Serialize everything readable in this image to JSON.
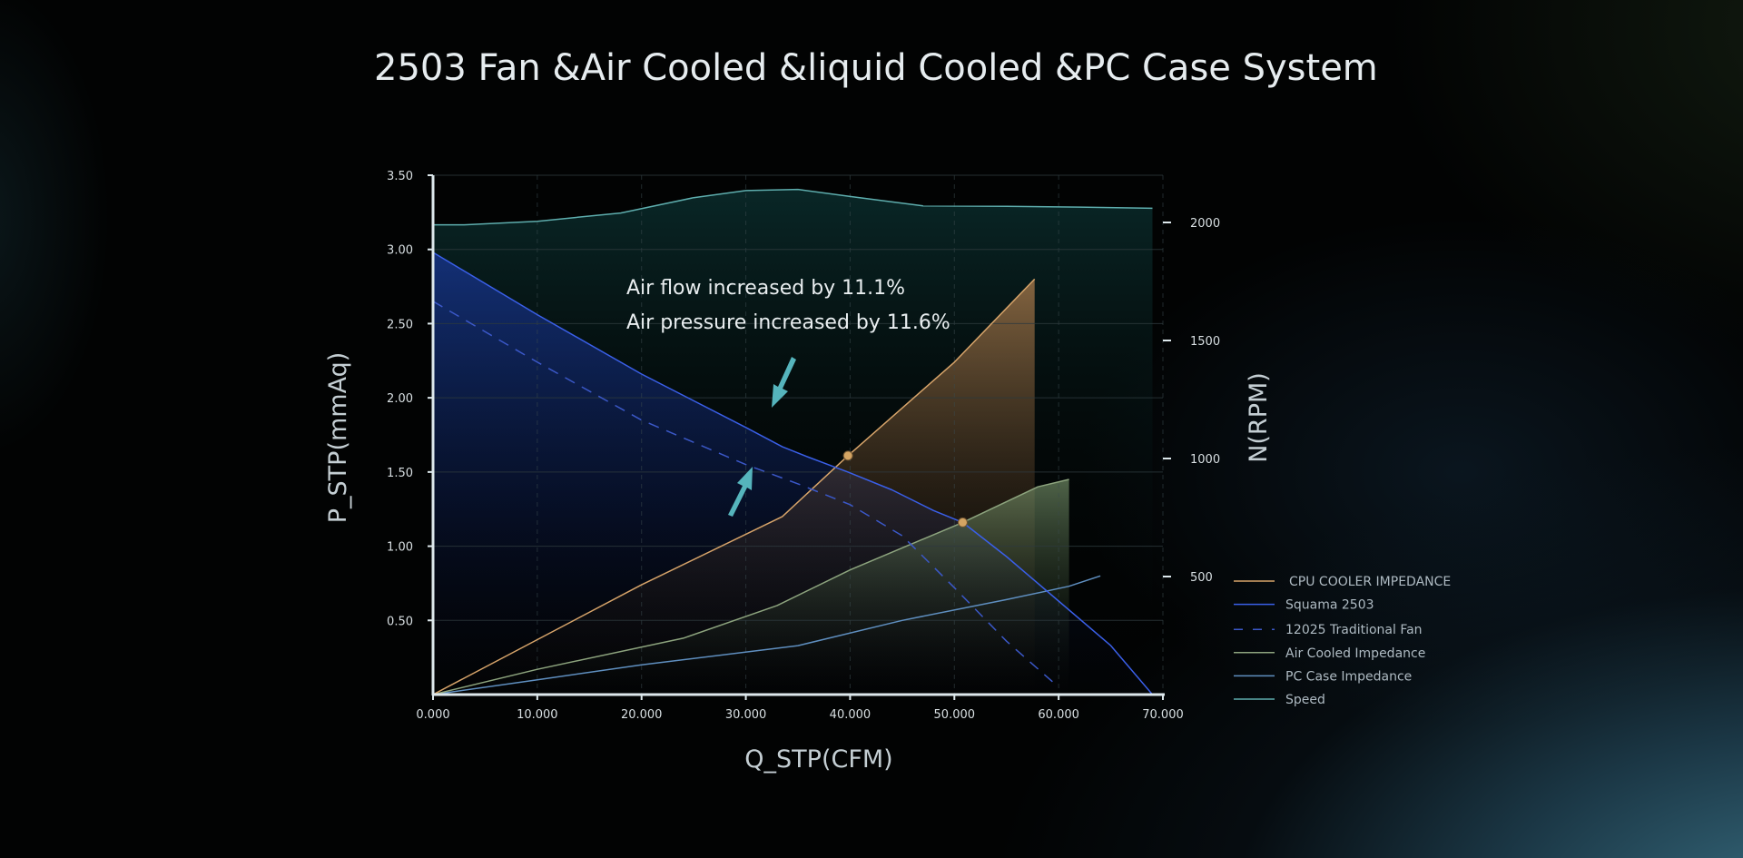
{
  "chart_data": {
    "type": "line",
    "title": "2503 Fan &Air Cooled &liquid Cooled &PC Case System",
    "xlabel": "Q_STP(CFM)",
    "ylabel": "P_STP(mmAq)",
    "y2label": "N(RPM)",
    "xlim": [
      0,
      70
    ],
    "ylim": [
      0,
      3.5
    ],
    "y2lim": [
      0,
      2200
    ],
    "x_ticks": [
      "0.000",
      "10.000",
      "20.000",
      "30.000",
      "40.000",
      "50.000",
      "60.000",
      "70.000"
    ],
    "y_ticks": [
      "0.50",
      "1.00",
      "1.50",
      "2.00",
      "2.50",
      "3.00",
      "3.50"
    ],
    "y2_ticks": [
      "500",
      "1000",
      "1500",
      "2000"
    ],
    "grid": true,
    "legend_position": "right",
    "annotations": [
      "Air flow increased by 11.1%",
      "Air pressure increased by 11.6%"
    ],
    "series": [
      {
        "name": "Speed",
        "axis": "right",
        "color": "#5eaeae",
        "style": "solid",
        "fill": true,
        "x": [
          0,
          3,
          10,
          18,
          25,
          30,
          35,
          40,
          47,
          55,
          62,
          69
        ],
        "y": [
          1990,
          1990,
          2005,
          2040,
          2105,
          2135,
          2140,
          2110,
          2070,
          2068,
          2065,
          2060
        ]
      },
      {
        "name": "Squama 2503",
        "axis": "left",
        "color": "#3a5fe8",
        "style": "solid",
        "fill": true,
        "x": [
          0,
          10,
          20,
          30,
          33.5,
          36,
          39.8,
          44,
          48,
          50.8,
          55,
          60,
          65,
          69
        ],
        "y": [
          2.98,
          2.56,
          2.16,
          1.8,
          1.67,
          1.6,
          1.5,
          1.38,
          1.24,
          1.16,
          0.93,
          0.63,
          0.33,
          0.0
        ]
      },
      {
        "name": "12025 Traditional Fan",
        "axis": "left",
        "color": "#3b58c8",
        "style": "dashed",
        "fill": false,
        "x": [
          0,
          10,
          20,
          30,
          35,
          40,
          45,
          50,
          55,
          60
        ],
        "y": [
          2.65,
          2.24,
          1.85,
          1.55,
          1.42,
          1.28,
          1.07,
          0.72,
          0.36,
          0.05
        ]
      },
      {
        "name": "CPU COOLER IMPEDANCE",
        "axis": "left",
        "color": "#d7a46a",
        "style": "solid",
        "fill": true,
        "x": [
          0,
          10,
          20,
          33.5,
          39.8,
          50,
          57.7
        ],
        "y": [
          0,
          0.37,
          0.74,
          1.2,
          1.61,
          2.24,
          2.8
        ]
      },
      {
        "name": "Air Cooled Impedance",
        "axis": "left",
        "color": "#8da47e",
        "style": "solid",
        "fill": true,
        "x": [
          0,
          10,
          24,
          33,
          40,
          50.8,
          58,
          61
        ],
        "y": [
          0,
          0.17,
          0.38,
          0.6,
          0.84,
          1.16,
          1.4,
          1.45
        ]
      },
      {
        "name": "PC Case Impedance",
        "axis": "left",
        "color": "#5f8fc0",
        "style": "solid",
        "fill": false,
        "x": [
          0,
          10,
          20,
          35,
          45,
          55,
          61,
          64
        ],
        "y": [
          0,
          0.1,
          0.2,
          0.33,
          0.5,
          0.64,
          0.73,
          0.8
        ]
      }
    ],
    "legend": [
      "CPU COOLER IMPEDANCE",
      "Squama 2503",
      "12025 Traditional Fan",
      "Air Cooled Impedance",
      "PC Case Impedance",
      "Speed"
    ],
    "operating_points": [
      {
        "x": 39.8,
        "y": 1.61
      },
      {
        "x": 50.8,
        "y": 1.16
      }
    ]
  }
}
